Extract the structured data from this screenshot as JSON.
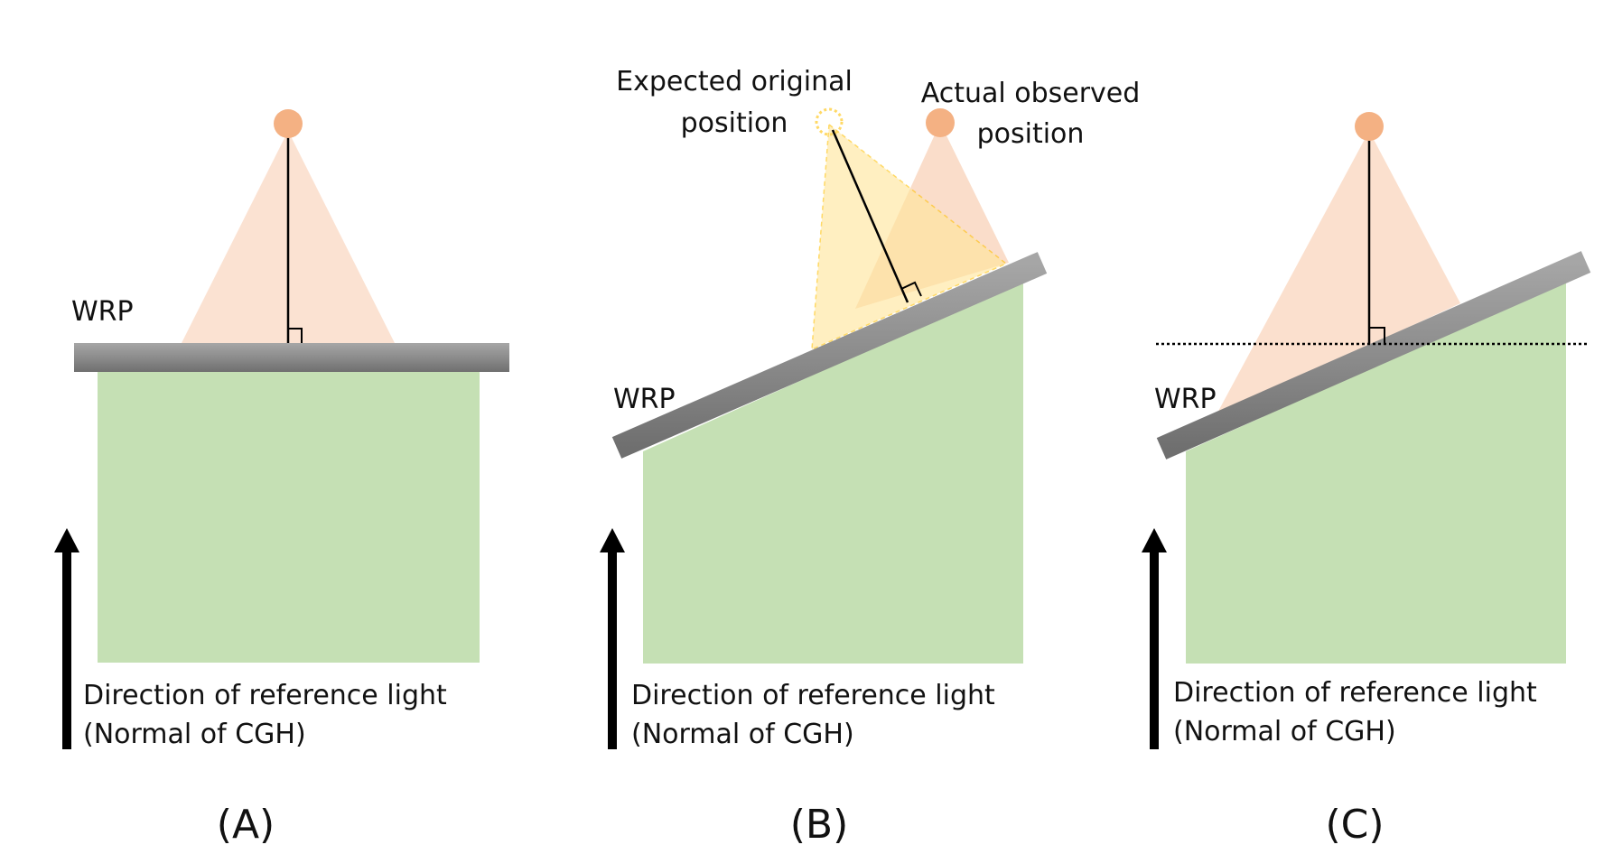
{
  "panels": [
    {
      "wrp_label": "WRP",
      "arrow_label_line1": "Direction of reference light",
      "arrow_label_line2": "(Normal of CGH)",
      "caption": "(A)"
    },
    {
      "wrp_label": "WRP",
      "expected_label_line1": "Expected original",
      "expected_label_line2": "position",
      "actual_label_line1": "Actual observed",
      "actual_label_line2": "position",
      "arrow_label_line1": "Direction of reference light",
      "arrow_label_line2": "(Normal of CGH)",
      "caption": "(B)"
    },
    {
      "wrp_label": "WRP",
      "arrow_label_line1": "Direction of reference light",
      "arrow_label_line2": "(Normal of CGH)",
      "caption": "(C)"
    }
  ],
  "colors": {
    "hologram_fill": "#c5e0b4",
    "wrp_plane": "#8c8c8c",
    "point_source": "#f4b183",
    "cone": "#f8cbad",
    "expected_cone": "#ffe699",
    "expected_outline": "#ffc000",
    "arrow": "#000000"
  }
}
